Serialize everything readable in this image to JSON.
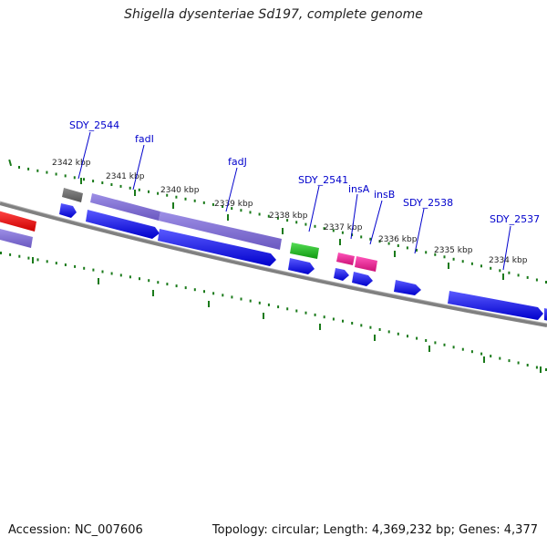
{
  "title": "Shigella dysenteriae Sd197, complete genome",
  "footer": {
    "accession": "Accession: NC_007606",
    "summary": "Topology: circular; Length: 4,369,232 bp; Genes: 4,377"
  },
  "scale_ticks": [
    "2342 kbp",
    "2341 kbp",
    "2340 kbp",
    "2339 kbp",
    "2338 kbp",
    "2337 kbp",
    "2336 kbp",
    "2335 kbp",
    "2334 kbp"
  ],
  "gene_labels": [
    "SDY_2544",
    "fadI",
    "fadJ",
    "SDY_2541",
    "insA",
    "insB",
    "SDY_2538",
    "SDY_2537"
  ],
  "colors": {
    "backbone": "#808080",
    "tick": "#1a7a1a",
    "cds": "#0000ee",
    "gene_purple": "#7b68cc",
    "gene_gray": "#707070",
    "gene_green": "#22bb22",
    "gene_pink": "#ee2299",
    "gene_red": "#ee0000",
    "label": "#0000cc"
  }
}
